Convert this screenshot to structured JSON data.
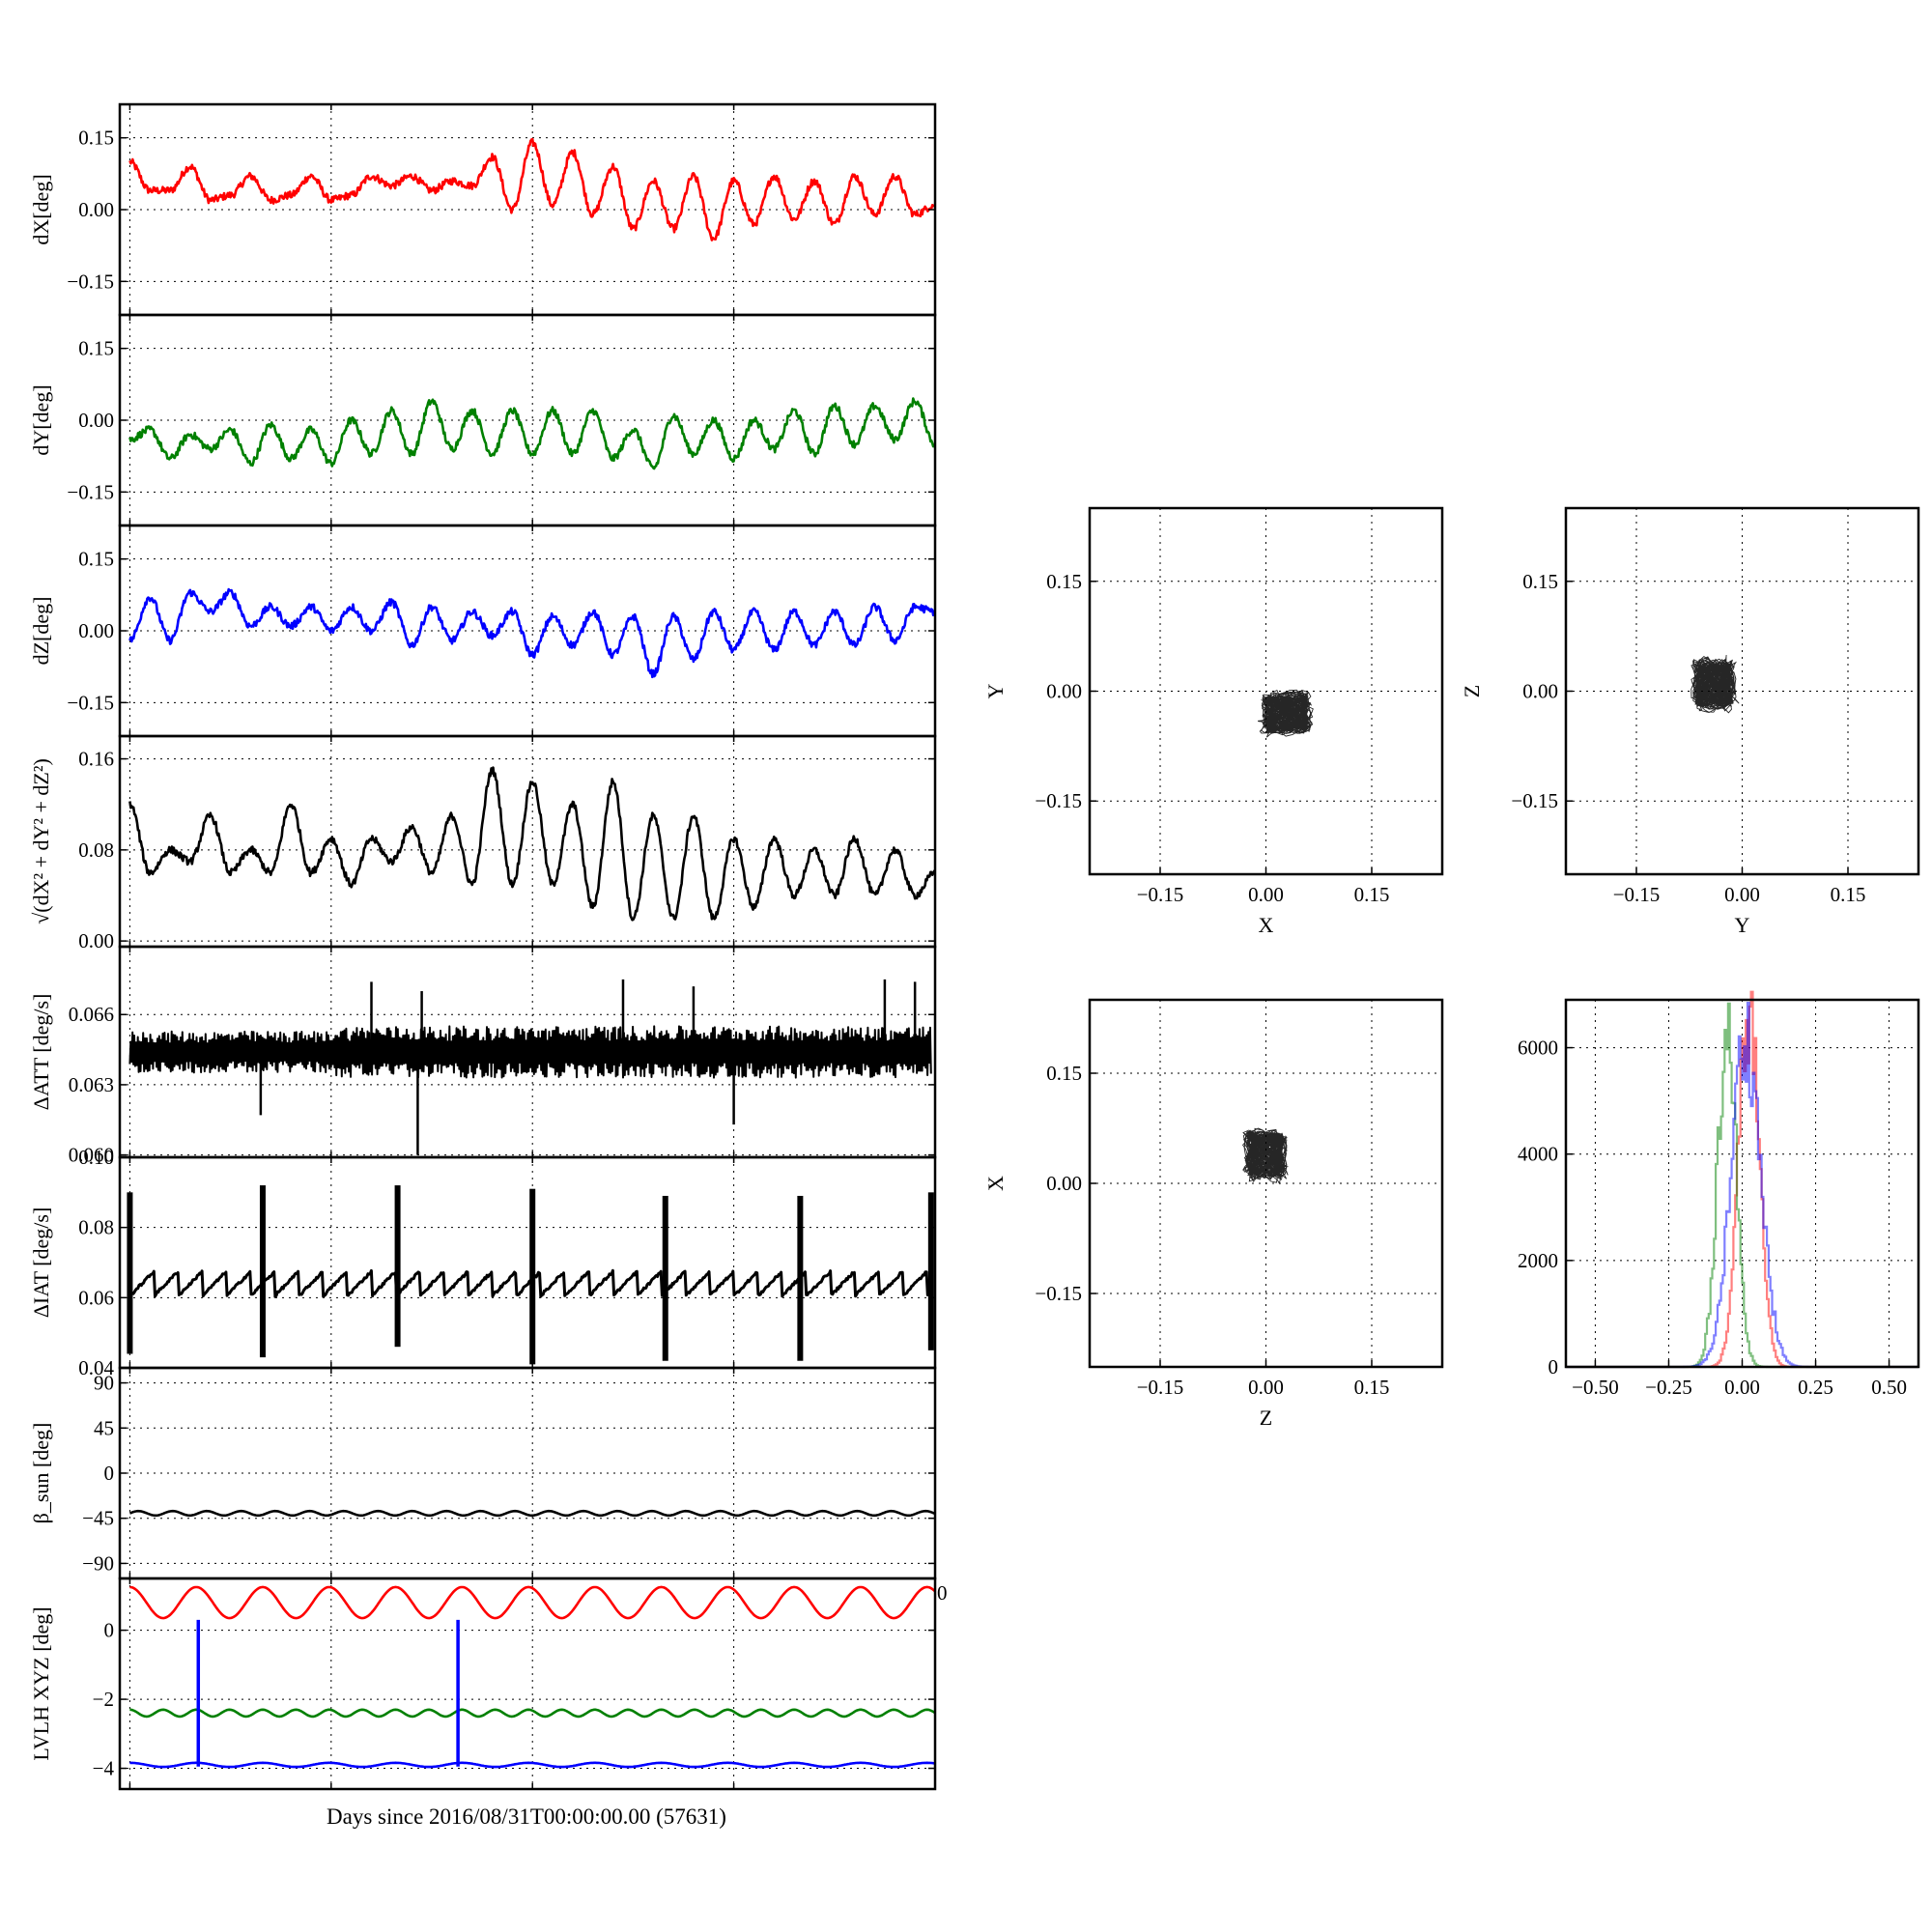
{
  "figure": {
    "xlabel": "Days since 2016/08/31T00:00:00.00 (57631)",
    "stray_tick_label": "0"
  },
  "colors": {
    "red": "#ff0000",
    "green": "#008000",
    "blue": "#0000ff",
    "black": "#000000"
  },
  "chart_data": [
    {
      "type": "line",
      "id": "dx",
      "ylabel": "dX[deg]",
      "ylim": [
        -0.22,
        0.22
      ],
      "yticks": [
        0.15,
        0.0,
        -0.15
      ],
      "ytick_labels": [
        "0.15",
        "0.00",
        "−0.15"
      ],
      "xticks": [
        0,
        1,
        2,
        3,
        4
      ],
      "xlim": [
        -0.05,
        4.0
      ],
      "color": "#ff0000",
      "x": [
        0,
        0.1,
        0.2,
        0.3,
        0.4,
        0.5,
        0.6,
        0.7,
        0.8,
        0.9,
        1.0,
        1.1,
        1.2,
        1.3,
        1.4,
        1.5,
        1.6,
        1.7,
        1.8,
        1.9,
        2.0,
        2.1,
        2.2,
        2.3,
        2.4,
        2.5,
        2.6,
        2.7,
        2.8,
        2.9,
        3.0,
        3.1,
        3.2,
        3.3,
        3.4,
        3.5,
        3.6,
        3.7,
        3.8,
        3.9,
        4.0
      ],
      "y": [
        0.1,
        0.04,
        0.04,
        0.09,
        0.02,
        0.03,
        0.07,
        0.02,
        0.03,
        0.07,
        0.02,
        0.03,
        0.07,
        0.05,
        0.07,
        0.04,
        0.06,
        0.05,
        0.11,
        0.0,
        0.14,
        0.01,
        0.12,
        -0.01,
        0.09,
        -0.04,
        0.06,
        -0.04,
        0.07,
        -0.06,
        0.06,
        -0.03,
        0.07,
        -0.02,
        0.06,
        -0.03,
        0.07,
        -0.01,
        0.07,
        -0.01,
        0.01
      ],
      "line_width": 2.6
    },
    {
      "type": "line",
      "id": "dy",
      "ylabel": "dY[deg]",
      "ylim": [
        -0.22,
        0.22
      ],
      "yticks": [
        0.15,
        0.0,
        -0.15
      ],
      "ytick_labels": [
        "0.15",
        "0.00",
        "−0.15"
      ],
      "xticks": [
        0,
        1,
        2,
        3,
        4
      ],
      "xlim": [
        -0.05,
        4.0
      ],
      "color": "#008000",
      "x": [
        0,
        0.1,
        0.2,
        0.3,
        0.4,
        0.5,
        0.6,
        0.7,
        0.8,
        0.9,
        1.0,
        1.1,
        1.2,
        1.3,
        1.4,
        1.5,
        1.6,
        1.7,
        1.8,
        1.9,
        2.0,
        2.1,
        2.2,
        2.3,
        2.4,
        2.5,
        2.6,
        2.7,
        2.8,
        2.9,
        3.0,
        3.1,
        3.2,
        3.3,
        3.4,
        3.5,
        3.6,
        3.7,
        3.8,
        3.9,
        4.0
      ],
      "y": [
        -0.04,
        -0.02,
        -0.08,
        -0.03,
        -0.06,
        -0.02,
        -0.09,
        -0.01,
        -0.08,
        -0.02,
        -0.09,
        0.0,
        -0.07,
        0.02,
        -0.07,
        0.04,
        -0.06,
        0.02,
        -0.07,
        0.02,
        -0.07,
        0.02,
        -0.07,
        0.02,
        -0.08,
        -0.02,
        -0.1,
        0.01,
        -0.07,
        0.0,
        -0.08,
        0.0,
        -0.06,
        0.02,
        -0.07,
        0.03,
        -0.05,
        0.03,
        -0.04,
        0.04,
        -0.05
      ],
      "line_width": 2.6
    },
    {
      "type": "line",
      "id": "dz",
      "ylabel": "dZ[deg]",
      "ylim": [
        -0.22,
        0.22
      ],
      "yticks": [
        0.15,
        0.0,
        -0.15
      ],
      "ytick_labels": [
        "0.15",
        "0.00",
        "−0.15"
      ],
      "xticks": [
        0,
        1,
        2,
        3,
        4
      ],
      "xlim": [
        -0.05,
        4.0
      ],
      "color": "#0000ff",
      "x": [
        0,
        0.1,
        0.2,
        0.3,
        0.4,
        0.5,
        0.6,
        0.7,
        0.8,
        0.9,
        1.0,
        1.1,
        1.2,
        1.3,
        1.4,
        1.5,
        1.6,
        1.7,
        1.8,
        1.9,
        2.0,
        2.1,
        2.2,
        2.3,
        2.4,
        2.5,
        2.6,
        2.7,
        2.8,
        2.9,
        3.0,
        3.1,
        3.2,
        3.3,
        3.4,
        3.5,
        3.6,
        3.7,
        3.8,
        3.9,
        4.0
      ],
      "y": [
        -0.02,
        0.07,
        -0.02,
        0.08,
        0.04,
        0.08,
        0.01,
        0.05,
        0.01,
        0.05,
        0.0,
        0.05,
        0.0,
        0.06,
        -0.03,
        0.05,
        -0.02,
        0.04,
        -0.01,
        0.04,
        -0.05,
        0.03,
        -0.03,
        0.04,
        -0.05,
        0.03,
        -0.09,
        0.03,
        -0.06,
        0.04,
        -0.04,
        0.04,
        -0.04,
        0.04,
        -0.03,
        0.04,
        -0.03,
        0.05,
        -0.02,
        0.05,
        0.04
      ],
      "line_width": 2.6
    },
    {
      "type": "line",
      "id": "dr",
      "ylabel": "√(dX² + dY² + dZ²)",
      "ylim": [
        -0.005,
        0.18
      ],
      "yticks": [
        0.16,
        0.08,
        0.0
      ],
      "ytick_labels": [
        "0.16",
        "0.08",
        "0.00"
      ],
      "xticks": [
        0,
        1,
        2,
        3,
        4
      ],
      "xlim": [
        -0.05,
        4.0
      ],
      "color": "#000000",
      "x": [
        0,
        0.1,
        0.2,
        0.3,
        0.4,
        0.5,
        0.6,
        0.7,
        0.8,
        0.9,
        1.0,
        1.1,
        1.2,
        1.3,
        1.4,
        1.5,
        1.6,
        1.7,
        1.8,
        1.9,
        2.0,
        2.1,
        2.2,
        2.3,
        2.4,
        2.5,
        2.6,
        2.7,
        2.8,
        2.9,
        3.0,
        3.1,
        3.2,
        3.3,
        3.4,
        3.5,
        3.6,
        3.7,
        3.8,
        3.9,
        4.0
      ],
      "y": [
        0.12,
        0.06,
        0.08,
        0.07,
        0.11,
        0.06,
        0.08,
        0.06,
        0.12,
        0.06,
        0.09,
        0.05,
        0.09,
        0.07,
        0.1,
        0.06,
        0.11,
        0.05,
        0.15,
        0.05,
        0.14,
        0.05,
        0.12,
        0.03,
        0.14,
        0.02,
        0.11,
        0.02,
        0.11,
        0.02,
        0.09,
        0.03,
        0.09,
        0.04,
        0.08,
        0.04,
        0.09,
        0.04,
        0.08,
        0.04,
        0.06
      ],
      "line_width": 2.6
    },
    {
      "type": "line",
      "id": "datt",
      "ylabel": "ΔATT [deg/s]",
      "ylim": [
        0.0599,
        0.0689
      ],
      "yticks": [
        0.066,
        0.063,
        0.06
      ],
      "ytick_labels": [
        "0.066",
        "0.063",
        "0.060"
      ],
      "xticks": [
        0,
        1,
        2,
        3,
        4
      ],
      "xlim": [
        -0.05,
        4.0
      ],
      "color": "#000000",
      "style": "dense-noise band",
      "band_low": 0.0633,
      "band_high": 0.0655,
      "spikes": [
        {
          "x": 1.2,
          "y": 0.0674
        },
        {
          "x": 1.45,
          "y": 0.067
        },
        {
          "x": 2.45,
          "y": 0.0675
        },
        {
          "x": 2.8,
          "y": 0.0672
        },
        {
          "x": 3.75,
          "y": 0.0675
        },
        {
          "x": 3.9,
          "y": 0.0674
        },
        {
          "x": 1.43,
          "y": 0.06
        },
        {
          "x": 0.65,
          "y": 0.0617
        },
        {
          "x": 3.0,
          "y": 0.0613
        }
      ],
      "line_width": 2.0
    },
    {
      "type": "line",
      "id": "diat",
      "ylabel": "ΔIAT [deg/s]",
      "ylim": [
        0.04,
        0.1
      ],
      "yticks": [
        0.1,
        0.08,
        0.06,
        0.04
      ],
      "ytick_labels": [
        "0.10",
        "0.08",
        "0.06",
        "0.04"
      ],
      "xticks": [
        0,
        1,
        2,
        3,
        4
      ],
      "xlim": [
        -0.05,
        4.0
      ],
      "color": "#000000",
      "style": "sawtooth",
      "base": 0.064,
      "amp": 0.0035,
      "period": 0.12,
      "spikes": [
        {
          "x": 0.0,
          "hi": 0.09,
          "lo": 0.044
        },
        {
          "x": 0.66,
          "hi": 0.092,
          "lo": 0.043
        },
        {
          "x": 1.33,
          "hi": 0.092,
          "lo": 0.046
        },
        {
          "x": 2.0,
          "hi": 0.091,
          "lo": 0.041
        },
        {
          "x": 2.66,
          "hi": 0.089,
          "lo": 0.042
        },
        {
          "x": 3.33,
          "hi": 0.089,
          "lo": 0.042
        },
        {
          "x": 3.98,
          "hi": 0.09,
          "lo": 0.045
        }
      ],
      "line_width": 3.0
    },
    {
      "type": "line",
      "id": "beta",
      "ylabel": "β_sun [deg]",
      "ylim": [
        -105,
        105
      ],
      "yticks": [
        90,
        45,
        0,
        -45,
        -90
      ],
      "ytick_labels": [
        "90",
        "45",
        "0",
        "−45",
        "−90"
      ],
      "xticks": [
        0,
        1,
        2,
        3,
        4
      ],
      "xlim": [
        -0.05,
        4.0
      ],
      "color": "#000000",
      "style": "sine",
      "base": -40,
      "amp": 2.2,
      "period": 0.17,
      "line_width": 2.6
    },
    {
      "type": "line",
      "id": "lvlh",
      "ylabel": "LVLH XYZ [deg]",
      "ylim": [
        -4.6,
        1.5
      ],
      "yticks": [
        0,
        -2,
        -4
      ],
      "ytick_labels": [
        "0",
        "−2",
        "−4"
      ],
      "xticks": [
        0,
        1,
        2,
        3,
        4
      ],
      "xlim": [
        -0.05,
        4.0
      ],
      "series": [
        {
          "color": "#ff0000",
          "style": "sine",
          "base": 0.8,
          "amp": 0.45,
          "period": 0.33
        },
        {
          "color": "#008000",
          "style": "sine",
          "base": -2.4,
          "amp": 0.1,
          "period": 0.165
        },
        {
          "color": "#0000ff",
          "style": "sine",
          "base": -3.9,
          "amp": 0.06,
          "period": 0.33,
          "spikes": [
            {
              "x": 0.34,
              "hi": 0.3,
              "lo": -3.95
            },
            {
              "x": 1.63,
              "hi": 0.3,
              "lo": -3.95
            }
          ]
        }
      ],
      "line_width": 2.6
    },
    {
      "type": "scatter",
      "id": "xy",
      "xlabel": "X",
      "ylabel": "Y",
      "xlim": [
        -0.25,
        0.25
      ],
      "ylim": [
        -0.25,
        0.25
      ],
      "xticks": [
        -0.15,
        0.0,
        0.15
      ],
      "xtick_labels": [
        "−0.15",
        "0.00",
        "0.15"
      ],
      "yticks": [
        0.15,
        0.0,
        -0.15
      ],
      "ytick_labels": [
        "0.15",
        "0.00",
        "−0.15"
      ],
      "center": [
        0.03,
        -0.03
      ],
      "spread": [
        0.06,
        0.05
      ],
      "color": "#000000"
    },
    {
      "type": "scatter",
      "id": "yz",
      "xlabel": "Y",
      "ylabel": "Z",
      "xlim": [
        -0.25,
        0.25
      ],
      "ylim": [
        -0.25,
        0.25
      ],
      "xticks": [
        -0.15,
        0.0,
        0.15
      ],
      "xtick_labels": [
        "−0.15",
        "0.00",
        "0.15"
      ],
      "yticks": [
        0.15,
        0.0,
        -0.15
      ],
      "ytick_labels": [
        "0.15",
        "0.00",
        "−0.15"
      ],
      "center": [
        -0.04,
        0.01
      ],
      "spread": [
        0.05,
        0.06
      ],
      "color": "#000000"
    },
    {
      "type": "scatter",
      "id": "zx",
      "xlabel": "Z",
      "ylabel": "X",
      "xlim": [
        -0.25,
        0.25
      ],
      "ylim": [
        -0.25,
        0.25
      ],
      "xticks": [
        -0.15,
        0.0,
        0.15
      ],
      "xtick_labels": [
        "−0.15",
        "0.00",
        "0.15"
      ],
      "yticks": [
        0.15,
        0.0,
        -0.15
      ],
      "ytick_labels": [
        "0.15",
        "0.00",
        "−0.15"
      ],
      "center": [
        0.0,
        0.04
      ],
      "spread": [
        0.05,
        0.06
      ],
      "color": "#000000"
    },
    {
      "type": "histogram",
      "id": "hist",
      "xlim": [
        -0.6,
        0.6
      ],
      "ylim": [
        0,
        6900
      ],
      "xticks": [
        -0.5,
        -0.25,
        0.0,
        0.25,
        0.5
      ],
      "xtick_labels": [
        "−0.50",
        "−0.25",
        "0.00",
        "0.25",
        "0.50"
      ],
      "yticks": [
        6000,
        4000,
        2000,
        0
      ],
      "ytick_labels": [
        "6000",
        "4000",
        "2000",
        "0"
      ],
      "series": [
        {
          "color": "#ff0000",
          "mean": 0.02,
          "sd": 0.035,
          "peak": 6700
        },
        {
          "color": "#008000",
          "mean": -0.055,
          "sd": 0.032,
          "peak": 6350
        },
        {
          "color": "#0000ff",
          "mean": 0.01,
          "sd": 0.05,
          "peak": 6200
        }
      ]
    }
  ]
}
